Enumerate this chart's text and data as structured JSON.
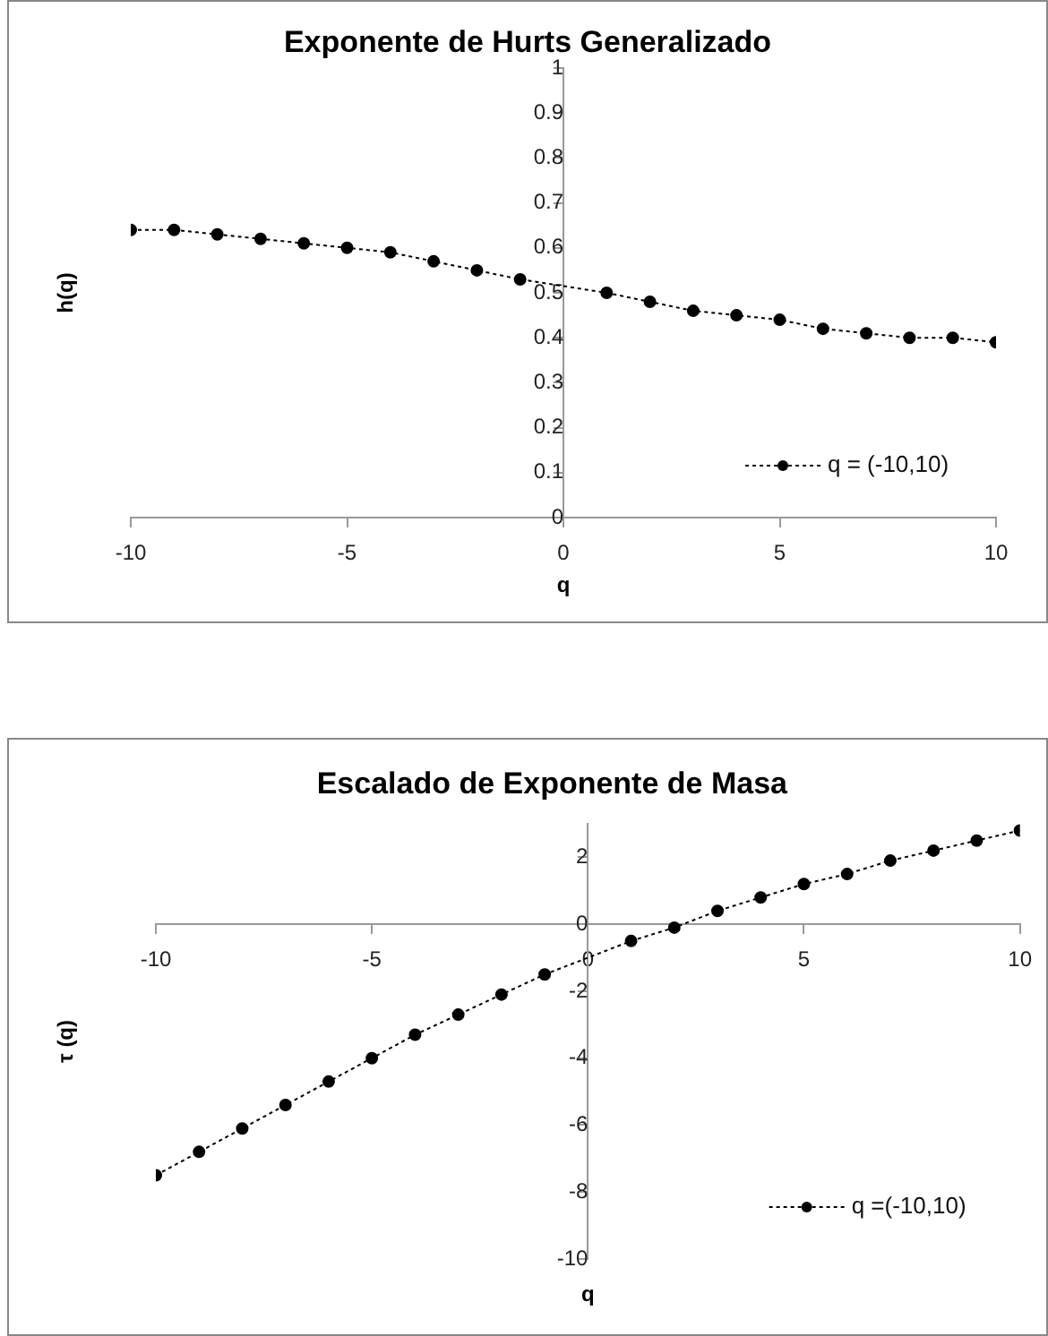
{
  "chart_data": [
    {
      "type": "line",
      "title": "Exponente de Hurts Generalizado",
      "xlabel": "q",
      "ylabel": "h(q)",
      "x": [
        -10,
        -9,
        -8,
        -7,
        -6,
        -5,
        -4,
        -3,
        -2,
        -1,
        1,
        2,
        3,
        4,
        5,
        6,
        7,
        8,
        9,
        10
      ],
      "series": [
        {
          "name": "q = (-10,10)",
          "color": "#000000",
          "values": [
            0.64,
            0.64,
            0.63,
            0.62,
            0.61,
            0.6,
            0.59,
            0.57,
            0.55,
            0.53,
            0.5,
            0.48,
            0.46,
            0.45,
            0.44,
            0.42,
            0.41,
            0.4,
            0.4,
            0.39
          ]
        }
      ],
      "xlim": [
        -10,
        10
      ],
      "xticks": [
        -10,
        -5,
        0,
        5,
        10
      ],
      "ylim": [
        0,
        1
      ],
      "yticks": [
        0,
        0.1,
        0.2,
        0.3,
        0.4,
        0.5,
        0.6,
        0.7,
        0.8,
        0.9,
        1
      ],
      "grid": false,
      "legend": "bottom right",
      "marker": "circle",
      "line_style": "dotted"
    },
    {
      "type": "line",
      "title": "Escalado de Exponente de Masa",
      "xlabel": "q",
      "ylabel": "τ (q)",
      "x": [
        -10,
        -9,
        -8,
        -7,
        -6,
        -5,
        -4,
        -3,
        -2,
        -1,
        1,
        2,
        3,
        4,
        5,
        6,
        7,
        8,
        9,
        10
      ],
      "series": [
        {
          "name": "q =(-10,10)",
          "color": "#000000",
          "values": [
            -7.5,
            -6.8,
            -6.1,
            -5.4,
            -4.7,
            -4.0,
            -3.3,
            -2.7,
            -2.1,
            -1.5,
            -0.5,
            -0.1,
            0.4,
            0.8,
            1.2,
            1.5,
            1.9,
            2.2,
            2.5,
            2.8
          ]
        }
      ],
      "xlim": [
        -10,
        10
      ],
      "xticks": [
        -10,
        -5,
        0,
        5,
        10
      ],
      "ylim": [
        -10,
        3
      ],
      "yticks": [
        -10,
        -8,
        -6,
        -4,
        -2,
        0,
        2
      ],
      "grid": false,
      "legend": "bottom right",
      "marker": "circle",
      "line_style": "dotted"
    }
  ]
}
